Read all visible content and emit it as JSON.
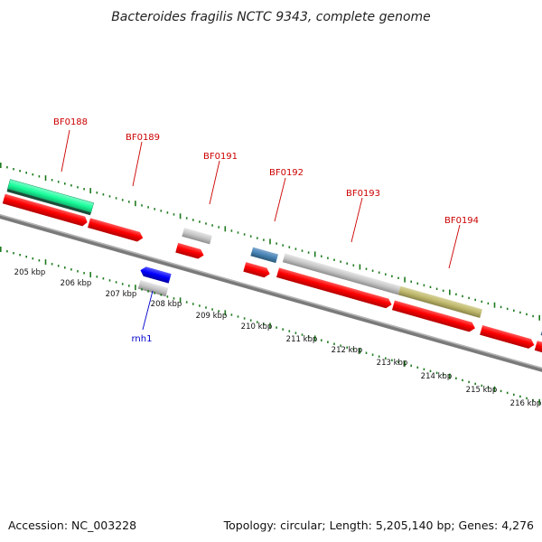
{
  "title": "Bacteroides fragilis NCTC 9343, complete genome",
  "footer": {
    "accession": "Accession: NC_003228",
    "summary": "Topology: circular; Length: 5,205,140 bp; Genes: 4,276"
  },
  "colors": {
    "cds": "#ff0000",
    "gene_light": "#c8c8c8",
    "trna": "#4682b4",
    "misc_feature": "#bdb76b",
    "rrna_like": "#1aff9c",
    "rnh": "#0000ff",
    "backbone": "#808080",
    "tick": "#1e7a1e",
    "label_red": "#cc0000",
    "label_blue": "#0000cc"
  },
  "gene_labels": [
    {
      "id": "BF0188",
      "text": "BF0188",
      "color": "red"
    },
    {
      "id": "BF0189",
      "text": "BF0189",
      "color": "red"
    },
    {
      "id": "BF0191",
      "text": "BF0191",
      "color": "red"
    },
    {
      "id": "BF0192",
      "text": "BF0192",
      "color": "red"
    },
    {
      "id": "BF0193",
      "text": "BF0193",
      "color": "red"
    },
    {
      "id": "BF0194",
      "text": "BF0194",
      "color": "red"
    },
    {
      "id": "rnh1",
      "text": "rnh1",
      "color": "blue"
    }
  ],
  "kbp_labels": [
    "205 kbp",
    "206 kbp",
    "207 kbp",
    "208 kbp",
    "209 kbp",
    "210 kbp",
    "211 kbp",
    "212 kbp",
    "213 kbp",
    "214 kbp",
    "215 kbp",
    "216 kbp"
  ]
}
